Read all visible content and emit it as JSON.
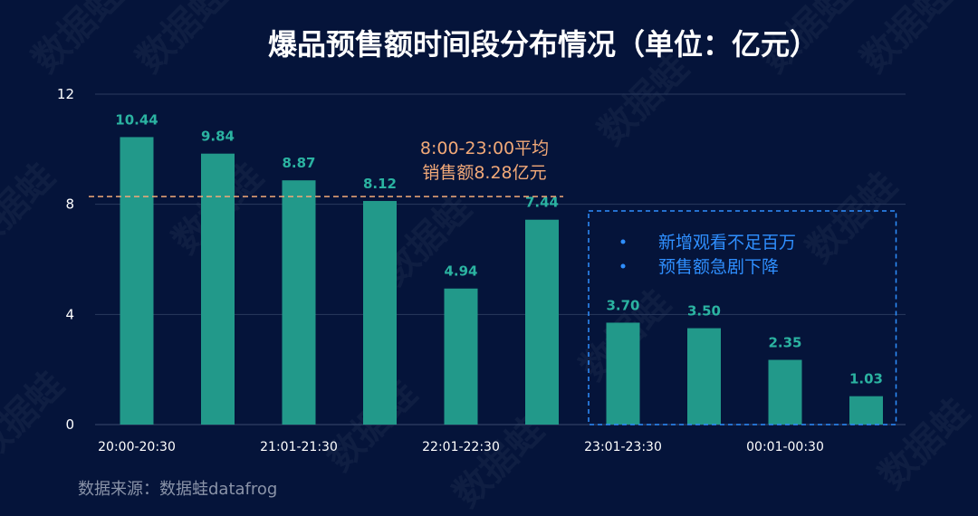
{
  "chart_data": {
    "type": "bar",
    "title": "爆品预售额时间段分布情况（单位：亿元）",
    "categories": [
      "20:00-20:30",
      "",
      "21:01-21:30",
      "",
      "22:01-22:30",
      "",
      "23:01-23:30",
      "",
      "00:01-00:30",
      ""
    ],
    "values": [
      10.44,
      9.84,
      8.87,
      8.12,
      4.94,
      7.44,
      3.7,
      3.5,
      2.35,
      1.03
    ],
    "value_labels": [
      "10.44",
      "9.84",
      "8.87",
      "8.12",
      "4.94",
      "7.44",
      "3.70",
      "3.50",
      "2.35",
      "1.03"
    ],
    "yticks": [
      "0",
      "4",
      "8",
      "12"
    ],
    "ylim": [
      0,
      12
    ],
    "grid": true,
    "bar_color": "#22998a",
    "label_color": "#2bb3a1",
    "reference_line": {
      "value": 8.28,
      "label_lines": [
        "8:00-23:00平均",
        "销售额8.28亿元"
      ],
      "color": "#f2a978"
    },
    "highlight_box": {
      "from_index": 6,
      "to_index": 9,
      "notes": [
        "新增观看不足百万",
        "预售额急剧下降"
      ],
      "color": "#2f8fff"
    }
  },
  "source": "数据来源：数据蛙datafrog",
  "watermark": "数据蛙"
}
